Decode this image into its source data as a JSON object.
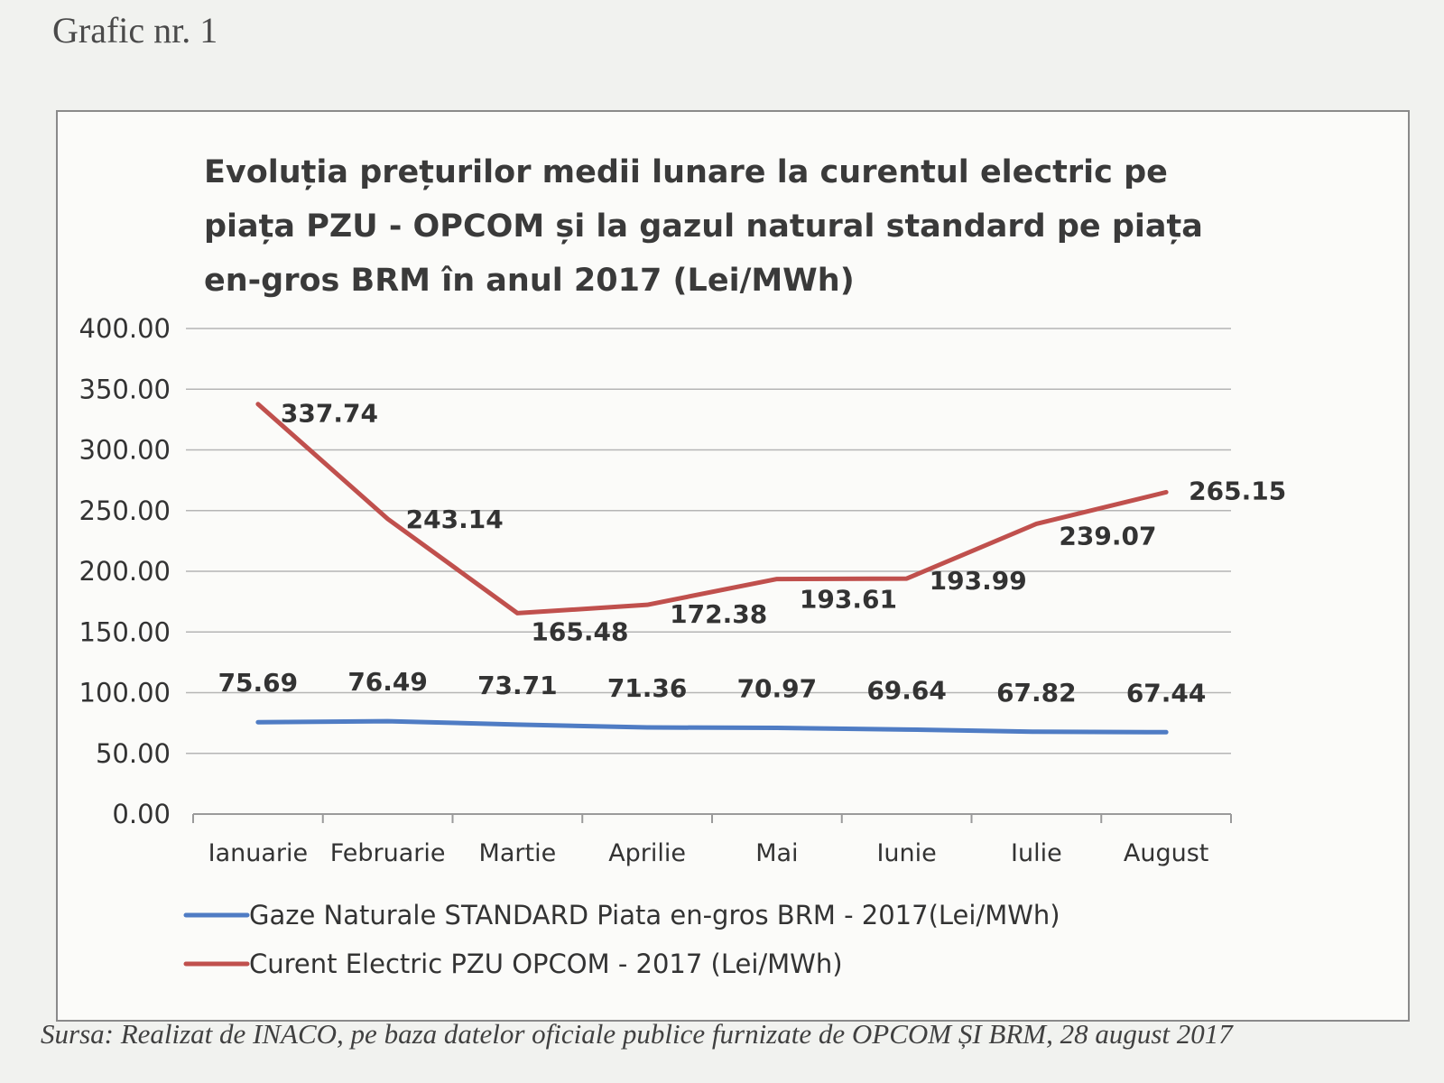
{
  "header": {
    "label": "Grafic nr. 1"
  },
  "footer": {
    "source": "Sursa: Realizat de INACO, pe baza datelor oficiale publice furnizate de OPCOM ȘI BRM, 28 august 2017"
  },
  "colors": {
    "gas": "#4f7cc4",
    "electric": "#c0504d"
  },
  "chart_data": {
    "type": "line",
    "title_lines": [
      "Evoluția prețurilor medii lunare la curentul electric pe",
      "piața PZU - OPCOM și la gazul natural standard pe piața",
      "en-gros BRM în anul 2017 (Lei/MWh)"
    ],
    "categories": [
      "Ianuarie",
      "Februarie",
      "Martie",
      "Aprilie",
      "Mai",
      "Iunie",
      "Iulie",
      "August"
    ],
    "y_ticks": [
      "0.00",
      "50.00",
      "100.00",
      "150.00",
      "200.00",
      "250.00",
      "300.00",
      "350.00",
      "400.00"
    ],
    "ylim": [
      0,
      400
    ],
    "grid": true,
    "legend_position": "bottom",
    "series": [
      {
        "name": "Gaze Naturale STANDARD Piata en-gros BRM - 2017(Lei/MWh)",
        "values": [
          75.69,
          76.49,
          73.71,
          71.36,
          70.97,
          69.64,
          67.82,
          67.44
        ],
        "labels": [
          "75.69",
          "76.49",
          "73.71",
          "71.36",
          "70.97",
          "69.64",
          "67.82",
          "67.44"
        ]
      },
      {
        "name": "Curent Electric PZU OPCOM - 2017 (Lei/MWh)",
        "values": [
          337.74,
          243.14,
          165.48,
          172.38,
          193.61,
          193.99,
          239.07,
          265.15
        ],
        "labels": [
          "337.74",
          "243.14",
          "165.48",
          "172.38",
          "193.61",
          "193.99",
          "239.07",
          "265.15"
        ]
      }
    ]
  }
}
